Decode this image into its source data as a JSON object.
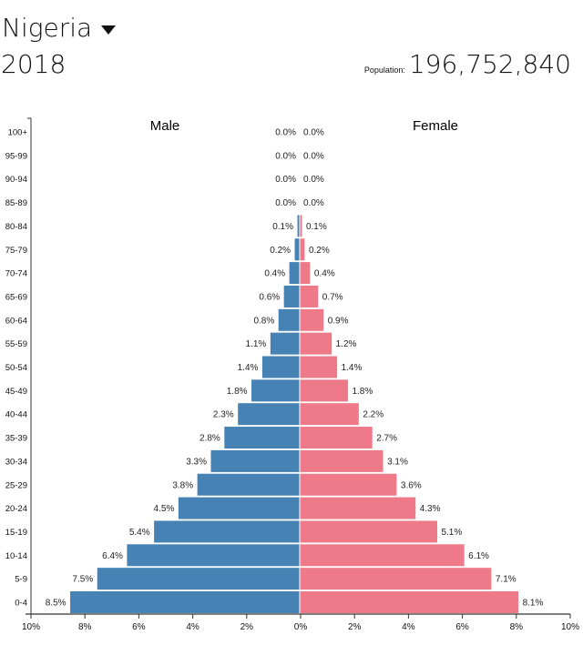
{
  "header": {
    "country": "Nigeria",
    "year": "2018",
    "population_label": "Population:",
    "population_value": "196,752,840"
  },
  "chart_data": {
    "type": "bar",
    "orientation": "horizontal-pyramid",
    "categories": [
      "100+",
      "95-99",
      "90-94",
      "85-89",
      "80-84",
      "75-79",
      "70-74",
      "65-69",
      "60-64",
      "55-59",
      "50-54",
      "45-49",
      "40-44",
      "35-39",
      "30-34",
      "25-29",
      "20-24",
      "15-19",
      "10-14",
      "5-9",
      "0-4"
    ],
    "series": [
      {
        "name": "Male",
        "color": "#4682b4",
        "values": [
          0.0,
          0.0,
          0.0,
          0.0,
          0.1,
          0.2,
          0.4,
          0.6,
          0.8,
          1.1,
          1.4,
          1.8,
          2.3,
          2.8,
          3.3,
          3.8,
          4.5,
          5.4,
          6.4,
          7.5,
          8.5
        ]
      },
      {
        "name": "Female",
        "color": "#ee7989",
        "values": [
          0.0,
          0.0,
          0.0,
          0.0,
          0.1,
          0.2,
          0.4,
          0.7,
          0.9,
          1.2,
          1.4,
          1.8,
          2.2,
          2.7,
          3.1,
          3.6,
          4.3,
          5.1,
          6.1,
          7.1,
          8.1
        ]
      }
    ],
    "xlim": [
      -10,
      10
    ],
    "x_ticks": [
      "10%",
      "8%",
      "6%",
      "4%",
      "2%",
      "0%",
      "2%",
      "4%",
      "6%",
      "8%",
      "10%"
    ],
    "grid": false
  }
}
